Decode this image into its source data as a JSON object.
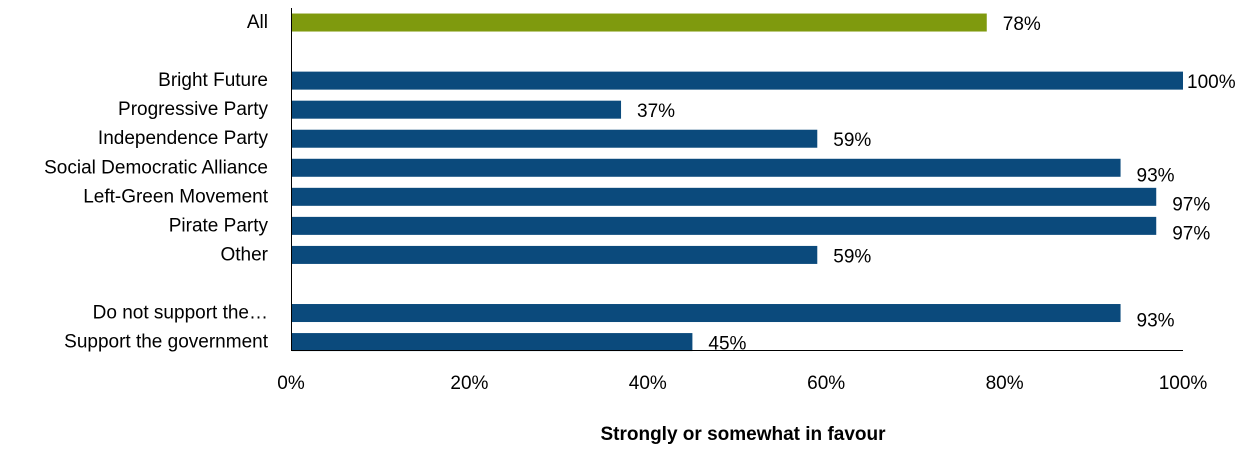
{
  "chart_data": {
    "type": "bar",
    "orientation": "horizontal",
    "title": "",
    "xlabel": "Strongly or somewhat in favour",
    "ylabel": "",
    "xlim": [
      0,
      100
    ],
    "x_ticks": [
      "0%",
      "20%",
      "40%",
      "60%",
      "80%",
      "100%"
    ],
    "x_tick_values": [
      0,
      20,
      40,
      60,
      80,
      100
    ],
    "grid": false,
    "legend": "none",
    "colors": {
      "highlight": "#7f9a0e",
      "default": "#0b4a7c"
    },
    "rows": [
      {
        "category": "All",
        "value": 78,
        "label": "78%",
        "color": "#7f9a0e"
      },
      {
        "category": "",
        "value": null,
        "label": ""
      },
      {
        "category": "Bright Future",
        "value": 100,
        "label": "100%"
      },
      {
        "category": "Progressive Party",
        "value": 37,
        "label": "37%"
      },
      {
        "category": "Independence Party",
        "value": 59,
        "label": "59%"
      },
      {
        "category": "Social Democratic Alliance",
        "value": 93,
        "label": "93%"
      },
      {
        "category": "Left-Green Movement",
        "value": 97,
        "label": "97%"
      },
      {
        "category": "Pirate Party",
        "value": 97,
        "label": "97%"
      },
      {
        "category": "Other",
        "value": 59,
        "label": "59%"
      },
      {
        "category": "",
        "value": null,
        "label": ""
      },
      {
        "category": "Do not support the…",
        "value": 93,
        "label": "93%"
      },
      {
        "category": "Support the government",
        "value": 45,
        "label": "45%"
      }
    ]
  }
}
